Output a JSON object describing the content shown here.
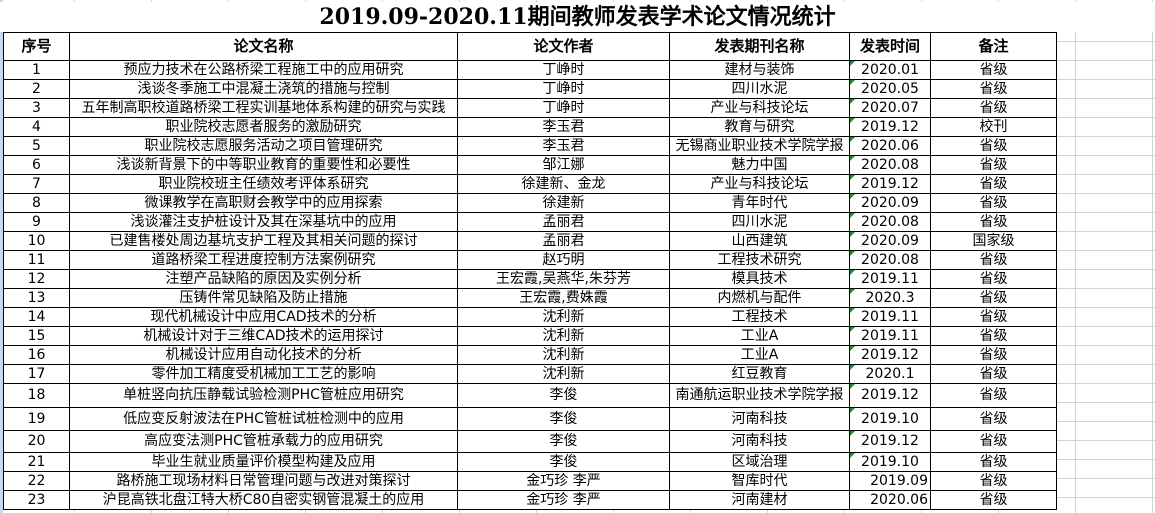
{
  "title": "2019.09-2020.11期间教师发表学术论文情况统计",
  "headers": [
    "序号",
    "论文名称",
    "论文作者",
    "发表期刊名称",
    "发表时间",
    "备注"
  ],
  "colors": {
    "error_flag": "#1f8a2e",
    "gridline": "#d4d4d4"
  },
  "rows": [
    {
      "no": "1",
      "name": "预应力技术在公路桥梁工程施工中的应用研究",
      "author": "丁峥时",
      "journal": "建材与装饰",
      "time": "2020.01",
      "note": "省级"
    },
    {
      "no": "2",
      "name": "浅谈冬季施工中混凝土浇筑的措施与控制",
      "author": "丁峥时",
      "journal": "四川水泥",
      "time": "2020.05",
      "note": "省级"
    },
    {
      "no": "3",
      "name": "五年制高职校道路桥梁工程实训基地体系构建的研究与实践",
      "author": "丁峥时",
      "journal": "产业与科技论坛",
      "time": "2020.07",
      "note": "省级"
    },
    {
      "no": "4",
      "name": "职业院校志愿者服务的激励研究",
      "author": "李玉君",
      "journal": "教育与研究",
      "time": "2019.12",
      "note": "校刊"
    },
    {
      "no": "5",
      "name": "职业院校志愿服务活动之项目管理研究",
      "author": "李玉君",
      "journal": "无锡商业职业技术学院学报",
      "time": "2020.06",
      "note": "省级"
    },
    {
      "no": "6",
      "name": "浅谈新背景下的中等职业教育的重要性和必要性",
      "author": "邹江娜",
      "journal": "魅力中国",
      "time": "2020.08",
      "note": "省级"
    },
    {
      "no": "7",
      "name": "职业院校班主任绩效考评体系研究",
      "author": "徐建新、金龙",
      "journal": "产业与科技论坛",
      "time": "2019.12",
      "note": "省级"
    },
    {
      "no": "8",
      "name": "微课教学在高职财会教学中的应用探索",
      "author": "徐建新",
      "journal": "青年时代",
      "time": "2020.09",
      "note": "省级"
    },
    {
      "no": "9",
      "name": "浅谈灌注支护桩设计及其在深基坑中的应用",
      "author": "孟丽君",
      "journal": "四川水泥",
      "time": "2020.08",
      "note": "省级"
    },
    {
      "no": "10",
      "name": "已建售楼处周边基坑支护工程及其相关问题的探讨",
      "author": "孟丽君",
      "journal": "山西建筑",
      "time": "2020.09",
      "note": "国家级"
    },
    {
      "no": "11",
      "name": "道路桥梁工程进度控制方法案例研究",
      "author": "赵巧明",
      "journal": "工程技术研究",
      "time": "2020.08",
      "note": "省级"
    },
    {
      "no": "12",
      "name": "注塑产品缺陷的原因及实例分析",
      "author": "王宏霞,吴燕华,朱芬芳",
      "journal": "模具技术",
      "time": "2019.11",
      "note": "省级"
    },
    {
      "no": "13",
      "name": "压铸件常见缺陷及防止措施",
      "author": "王宏霞,费姝霞",
      "journal": "内燃机与配件",
      "time": "2020.3",
      "note": "省级"
    },
    {
      "no": "14",
      "name": "现代机械设计中应用CAD技术的分析",
      "author": "沈利新",
      "journal": "工程技术",
      "time": "2019.11",
      "note": "省级"
    },
    {
      "no": "15",
      "name": "机械设计对于三维CAD技术的运用探讨",
      "author": "沈利新",
      "journal": "工业A",
      "time": "2019.11",
      "note": "省级"
    },
    {
      "no": "16",
      "name": "机械设计应用自动化技术的分析",
      "author": "沈利新",
      "journal": "工业A",
      "time": "2019.12",
      "note": "省级"
    },
    {
      "no": "17",
      "name": "零件加工精度受机械加工工艺的影响",
      "author": "沈利新",
      "journal": "红豆教育",
      "time": "2020.1",
      "note": "省级"
    },
    {
      "no": "18",
      "name": "单桩竖向抗压静载试验检测PHC管桩应用研究",
      "author": "李俊",
      "journal": "南通航运职业技术学院学报",
      "time": "2019.12",
      "note": "省级"
    },
    {
      "no": "19",
      "name": "低应变反射波法在PHC管桩试桩检测中的应用",
      "author": "李俊",
      "journal": "河南科技",
      "time": "2019.10",
      "note": "省级"
    },
    {
      "no": "20",
      "name": "高应变法测PHC管桩承载力的应用研究",
      "author": "李俊",
      "journal": "河南科技",
      "time": "2019.12",
      "note": "省级"
    },
    {
      "no": "21",
      "name": "毕业生就业质量评价模型构建及应用",
      "author": "李俊",
      "journal": "区域治理",
      "time": "2019.10",
      "note": "省级"
    },
    {
      "no": "22",
      "name": "路桥施工现场材料日常管理问题与改进对策探讨",
      "author": "金巧珍  李严",
      "journal": "智库时代",
      "time": "2019.09",
      "note": "省级"
    },
    {
      "no": "23",
      "name": "沪昆高铁北盘江特大桥C80自密实钢管混凝土的应用",
      "author": "金巧珍  李严",
      "journal": "河南建材",
      "time": "2020.06",
      "note": "省级"
    }
  ]
}
